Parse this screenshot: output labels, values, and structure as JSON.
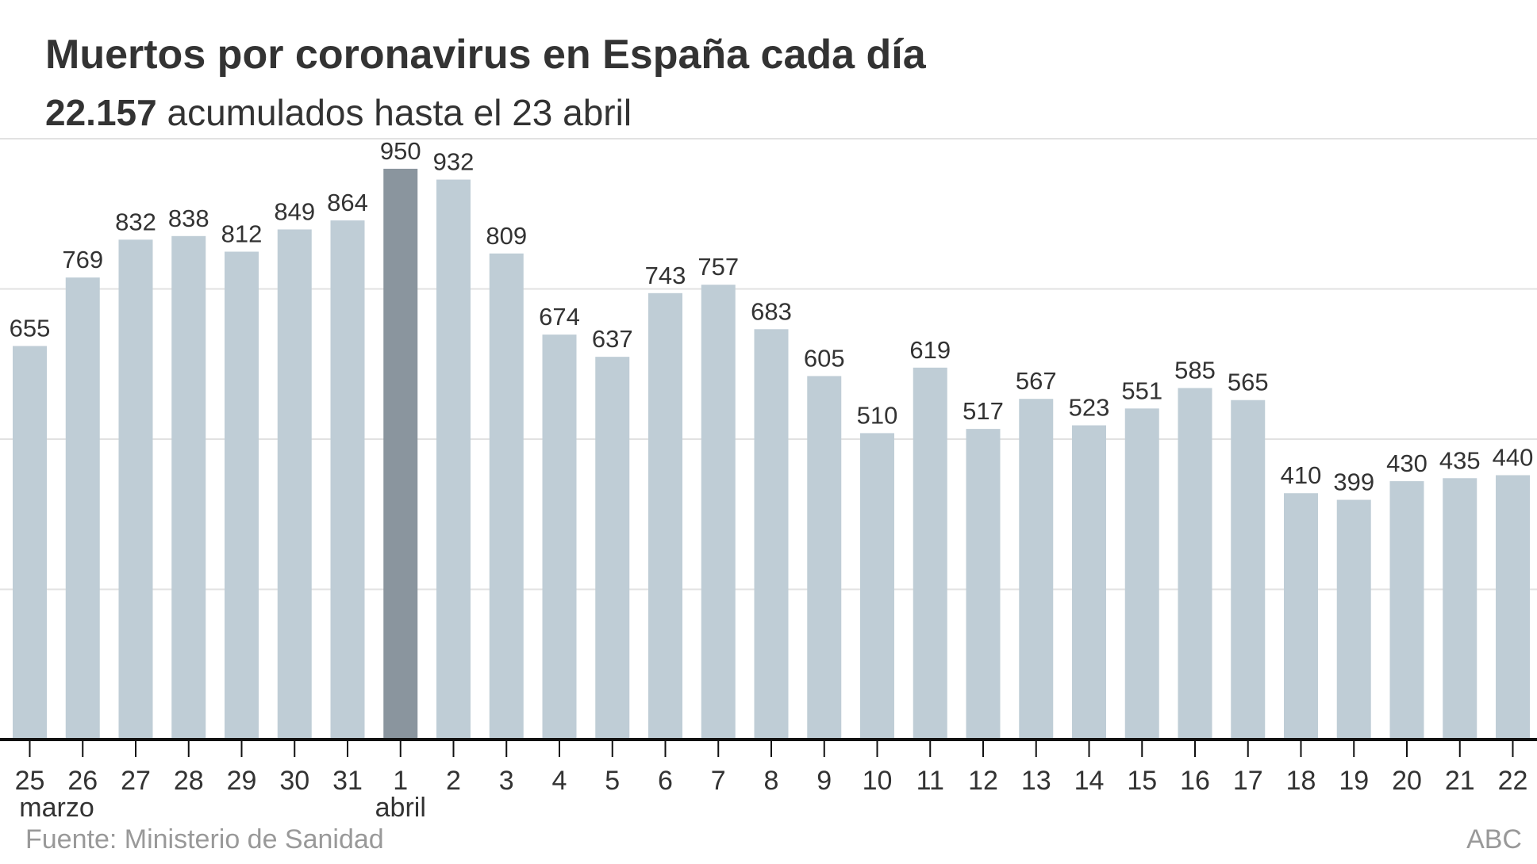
{
  "chart_data": {
    "type": "bar",
    "title": "Muertos por coronavirus en España cada día",
    "subtitle_bold": "22.157",
    "subtitle_rest": " acumulados hasta el 23 abril",
    "categories": [
      "25",
      "26",
      "27",
      "28",
      "29",
      "30",
      "31",
      "1",
      "2",
      "3",
      "4",
      "5",
      "6",
      "7",
      "8",
      "9",
      "10",
      "11",
      "12",
      "13",
      "14",
      "15",
      "16",
      "17",
      "18",
      "19",
      "20",
      "21",
      "22"
    ],
    "month_labels": [
      {
        "index": 0,
        "label": "marzo"
      },
      {
        "index": 7,
        "label": "abril"
      }
    ],
    "values": [
      655,
      769,
      832,
      838,
      812,
      849,
      864,
      950,
      932,
      809,
      674,
      637,
      743,
      757,
      683,
      605,
      510,
      619,
      517,
      567,
      523,
      551,
      585,
      565,
      410,
      399,
      430,
      435,
      440
    ],
    "highlight_index": 7,
    "ylim": [
      0,
      1000
    ],
    "gridlines": [
      250,
      500,
      750,
      1000
    ],
    "colors": {
      "bar": "#bfcdd6",
      "highlight": "#8a959e",
      "grid": "#e2e2e2",
      "axis": "#111111"
    },
    "source": "Fuente: Ministerio de Sanidad",
    "credit": "ABC"
  }
}
